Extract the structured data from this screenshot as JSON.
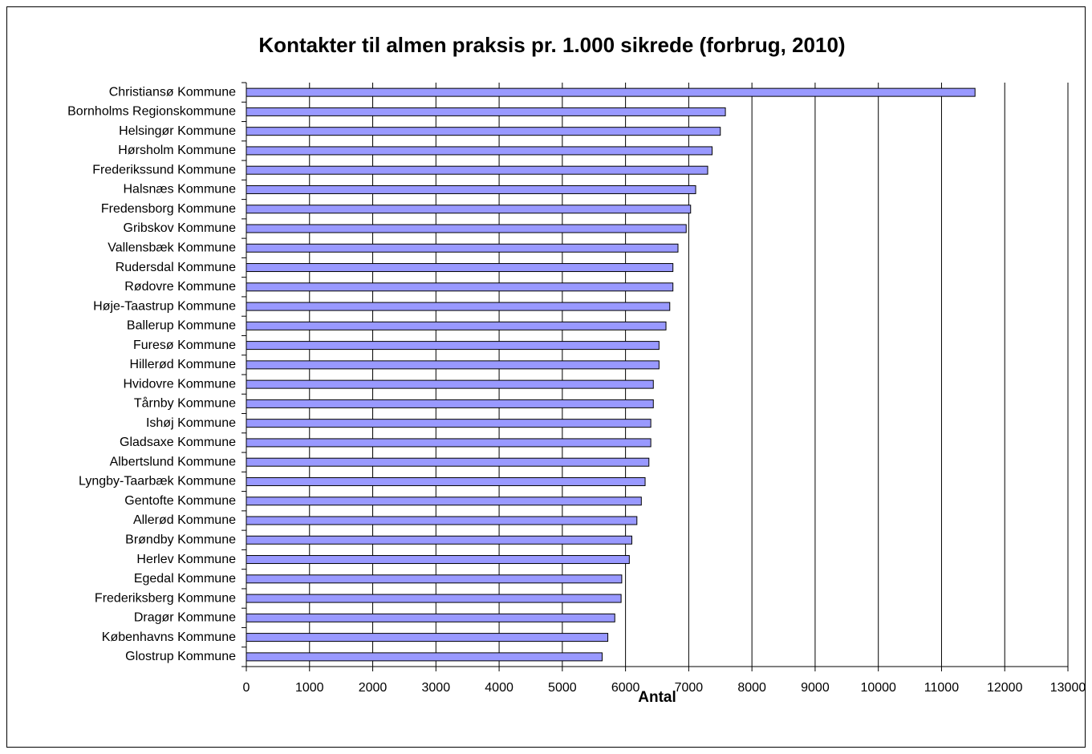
{
  "chart_data": {
    "type": "bar",
    "orientation": "horizontal",
    "title": "Kontakter til almen praksis pr. 1.000 sikrede (forbrug, 2010)",
    "x_label": "Antal",
    "categories": [
      "Christiansø Kommune",
      "Bornholms Regionskommune",
      "Helsingør Kommune",
      "Hørsholm Kommune",
      "Frederikssund Kommune",
      "Halsnæs Kommune",
      "Fredensborg Kommune",
      "Gribskov Kommune",
      "Vallensbæk Kommune",
      "Rudersdal Kommune",
      "Rødovre Kommune",
      "Høje-Taastrup Kommune",
      "Ballerup Kommune",
      "Furesø Kommune",
      "Hillerød Kommune",
      "Hvidovre Kommune",
      "Tårnby Kommune",
      "Ishøj Kommune",
      "Gladsaxe Kommune",
      "Albertslund Kommune",
      "Lyngby-Taarbæk Kommune",
      "Gentofte Kommune",
      "Allerød Kommune",
      "Brøndby Kommune",
      "Herlev Kommune",
      "Egedal Kommune",
      "Frederiksberg Kommune",
      "Dragør Kommune",
      "Københavns Kommune",
      "Glostrup Kommune"
    ],
    "values": [
      11530,
      7580,
      7500,
      7370,
      7300,
      7110,
      7030,
      6960,
      6830,
      6750,
      6750,
      6700,
      6640,
      6530,
      6530,
      6440,
      6440,
      6400,
      6400,
      6370,
      6310,
      6250,
      6180,
      6100,
      6060,
      5940,
      5930,
      5830,
      5720,
      5630
    ],
    "color": "#9999ff",
    "xlim": [
      0,
      13000
    ],
    "xticks": [
      0,
      1000,
      2000,
      3000,
      4000,
      5000,
      6000,
      7000,
      8000,
      9000,
      10000,
      11000,
      12000,
      13000
    ],
    "grid": true
  }
}
